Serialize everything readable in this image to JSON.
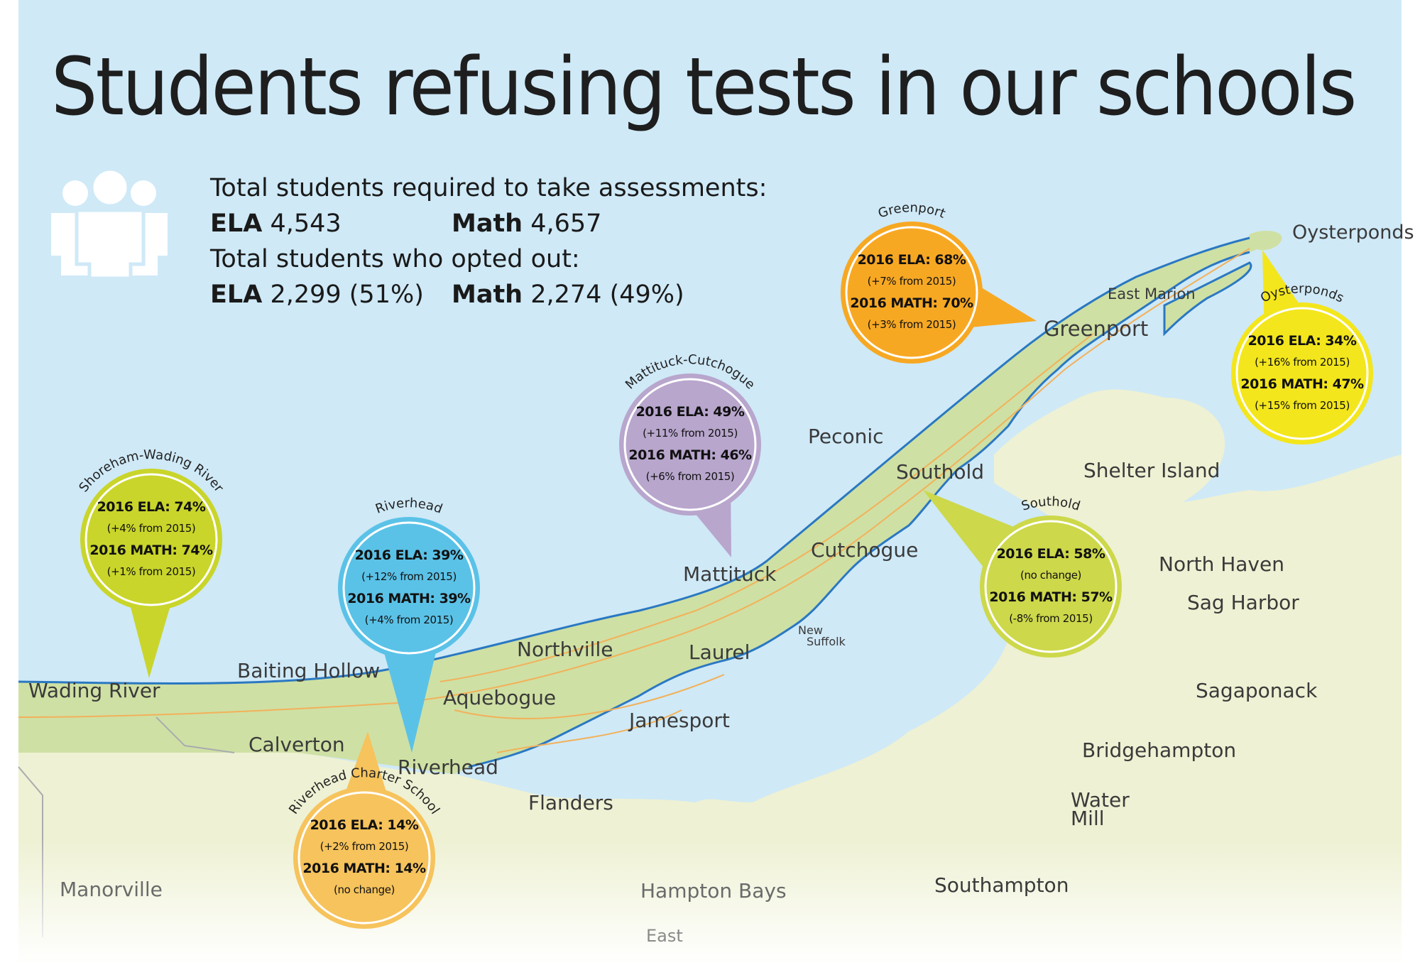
{
  "title": "Students refusing tests in our schools",
  "icons": {
    "people": "people-group-icon"
  },
  "summary": {
    "required_label": "Total students required to take assessments:",
    "required_ela_label": "ELA",
    "required_ela_value": "4,543",
    "required_math_label": "Math",
    "required_math_value": "4,657",
    "optout_label": "Total students who opted out:",
    "optout_ela_label": "ELA",
    "optout_ela_value": "2,299 (51%)",
    "optout_math_label": "Math",
    "optout_math_value": "2,274 (49%)"
  },
  "places": {
    "oysterponds": "Oysterponds",
    "east_marion": "East Marion",
    "greenport": "Greenport",
    "peconic": "Peconic",
    "southold": "Southold",
    "shelter_island": "Shelter Island",
    "cutchogue": "Cutchogue",
    "north_haven": "North Haven",
    "sag_harbor": "Sag Harbor",
    "mattituck": "Mattituck",
    "new_suffolk_1": "New",
    "new_suffolk_2": "Suffolk",
    "laurel": "Laurel",
    "northville": "Northville",
    "baiting_hollow": "Baiting Hollow",
    "wading_river": "Wading River",
    "aquebogue": "Aquebogue",
    "sagaponack": "Sagaponack",
    "jamesport": "Jamesport",
    "calverton": "Calverton",
    "riverhead": "Riverhead",
    "bridgehampton": "Bridgehampton",
    "flanders": "Flanders",
    "water_mill_1": "Water",
    "water_mill_2": "Mill",
    "southampton": "Southampton",
    "manorville": "Manorville",
    "hampton_bays": "Hampton Bays",
    "east_quogue": "East"
  },
  "colors": {
    "water": "#cfe9f7",
    "land_north_fork": "#cfe0a4",
    "land_south": "#eef1d3",
    "shoreline": "#2a78c2",
    "roads": "#f2b15a",
    "yellow_green": "#c9d52a",
    "blue": "#5bc2e7",
    "purple": "#b8a6cd",
    "orange": "#f7a823",
    "yellow": "#f3e61c",
    "olive": "#cdd84a",
    "light_orange": "#f6c35c"
  },
  "schools": [
    {
      "name": "Shoreham-Wading River",
      "ela": "2016 ELA: 74%",
      "ela_change": "(+4% from 2015)",
      "math": "2016 MATH: 74%",
      "math_change": "(+1% from 2015)"
    },
    {
      "name": "Riverhead",
      "ela": "2016 ELA: 39%",
      "ela_change": "(+12% from 2015)",
      "math": "2016 MATH: 39%",
      "math_change": "(+4% from 2015)"
    },
    {
      "name": "Mattituck-Cutchogue",
      "ela": "2016 ELA: 49%",
      "ela_change": "(+11% from 2015)",
      "math": "2016 MATH: 46%",
      "math_change": "(+6% from 2015)"
    },
    {
      "name": "Greenport",
      "ela": "2016 ELA: 68%",
      "ela_change": "(+7% from 2015)",
      "math": "2016 MATH: 70%",
      "math_change": "(+3% from 2015)"
    },
    {
      "name": "Oysterponds",
      "ela": "2016 ELA: 34%",
      "ela_change": "(+16% from 2015)",
      "math": "2016 MATH: 47%",
      "math_change": "(+15% from 2015)"
    },
    {
      "name": "Southold",
      "ela": "2016 ELA: 58%",
      "ela_change": "(no change)",
      "math": "2016 MATH: 57%",
      "math_change": "(-8% from 2015)"
    },
    {
      "name": "Riverhead Charter School",
      "ela": "2016 ELA: 14%",
      "ela_change": "(+2% from 2015)",
      "math": "2016 MATH: 14%",
      "math_change": "(no change)"
    }
  ]
}
